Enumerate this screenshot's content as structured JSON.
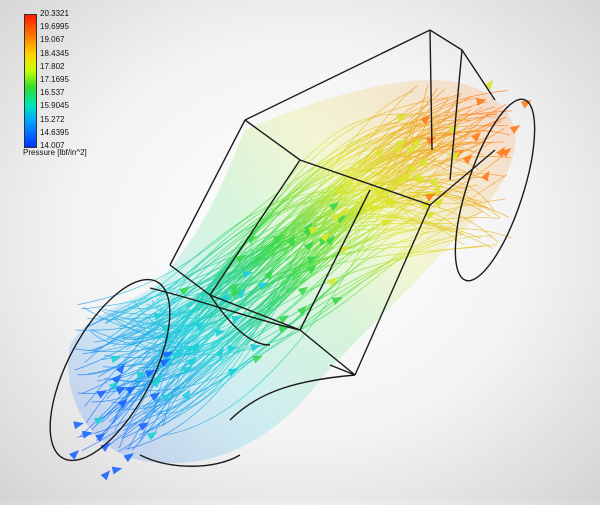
{
  "legend": {
    "title": "Pressure [lbf/in^2]",
    "ticks": [
      "20.3321",
      "19.6995",
      "19.067",
      "18.4345",
      "17.802",
      "17.1695",
      "16.537",
      "15.9045",
      "15.272",
      "14.6395",
      "14.007"
    ],
    "colors": [
      "#ff1a00",
      "#ff7a00",
      "#ffd500",
      "#c8ff00",
      "#2fdc2f",
      "#00e6b4",
      "#00a6ff",
      "#0033ff"
    ]
  },
  "scene": {
    "subject": "pipe-bend-flow-simulation",
    "flow_colors": {
      "low": "#1a66ff",
      "mid_low": "#1ecfd8",
      "mid": "#39d84a",
      "mid_high": "#d9e52a",
      "high": "#ff7a1a"
    },
    "outline_color": "#1a1a1a"
  }
}
